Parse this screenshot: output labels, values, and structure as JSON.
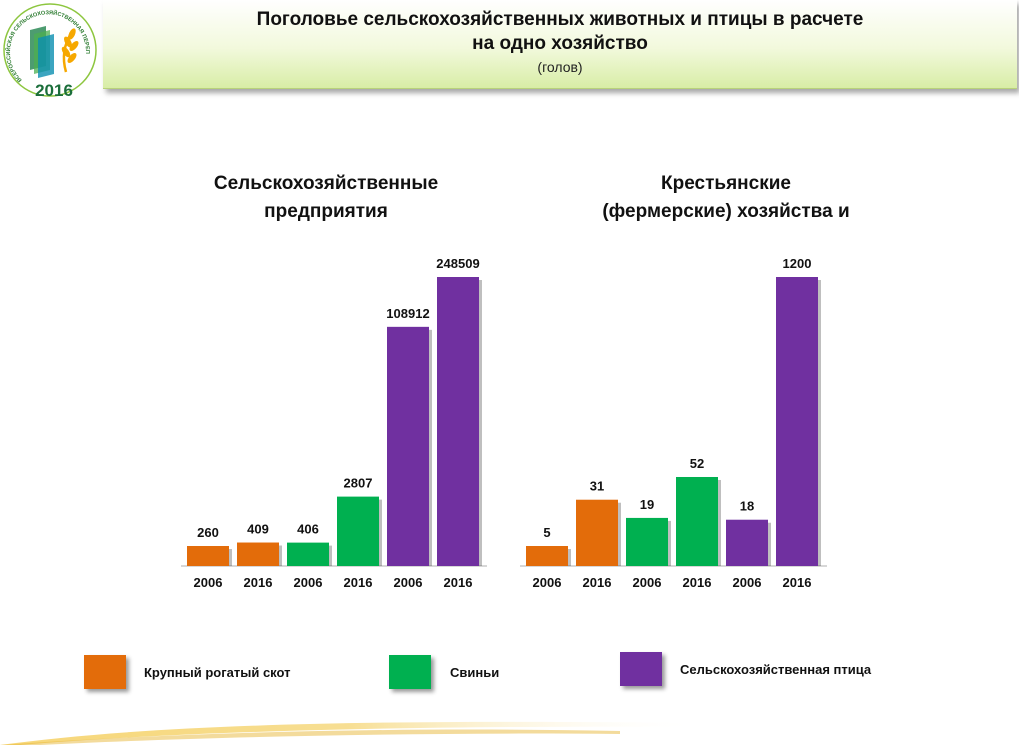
{
  "logo": {
    "ring_text": "ВСЕРОССИЙСКАЯ СЕЛЬСКОХОЗЯЙСТВЕННАЯ ПЕРЕПИСЬ",
    "year": "2016"
  },
  "title": {
    "line1": "Поголовье  сельскохозяйственных животных и птицы в расчете",
    "line2": "на одно хозяйство",
    "unit": "(голов)"
  },
  "colors": {
    "cattle": "#e36c0a",
    "pigs": "#00b050",
    "poultry": "#7030a0"
  },
  "legend": [
    {
      "key": "cattle",
      "label": "Крупный рогатый скот"
    },
    {
      "key": "pigs",
      "label": "Свиньи"
    },
    {
      "key": "poultry",
      "label": "Сельскохозяйственная птица"
    }
  ],
  "chart_data": [
    {
      "type": "bar",
      "title_lines": [
        "Сельскохозяйственные",
        "предприятия"
      ],
      "categories": [
        "2006",
        "2016",
        "2006",
        "2016",
        "2006",
        "2016"
      ],
      "series_keys": [
        "cattle",
        "cattle",
        "pigs",
        "pigs",
        "poultry",
        "poultry"
      ],
      "values": [
        260,
        409,
        406,
        2807,
        108912,
        248509
      ],
      "scale": "non-linear (bars not proportional to values)"
    },
    {
      "type": "bar",
      "title_lines": [
        "Крестьянские",
        "(фермерские) хозяйства и"
      ],
      "categories": [
        "2006",
        "2016",
        "2006",
        "2016",
        "2006",
        "2016"
      ],
      "series_keys": [
        "cattle",
        "cattle",
        "pigs",
        "pigs",
        "poultry",
        "poultry"
      ],
      "values": [
        5,
        31,
        19,
        52,
        18,
        1200
      ],
      "scale": "non-linear (bars not proportional to values)"
    }
  ]
}
